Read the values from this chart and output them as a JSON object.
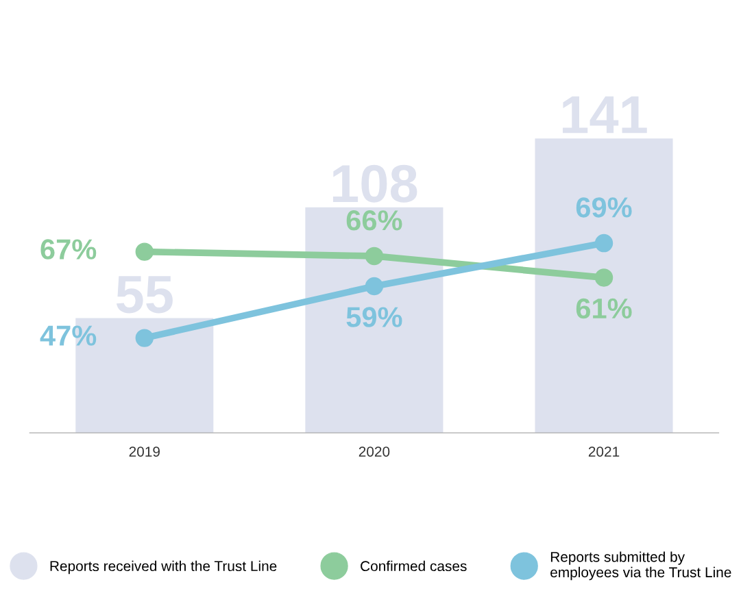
{
  "chart_data": {
    "type": "bar",
    "categories": [
      "2019",
      "2020",
      "2021"
    ],
    "series": [
      {
        "name": "Reports received with the Trust Line",
        "color": "#dde1ee",
        "values": [
          55,
          108,
          141
        ]
      },
      {
        "name": "Confirmed cases",
        "type": "line",
        "axis": "y2",
        "color": "#8dcc9c",
        "values": [
          67,
          66,
          61
        ],
        "value_labels": [
          "67%",
          "66%",
          "61%"
        ]
      },
      {
        "name": "Reports submitted by employees via the Trust Line",
        "type": "line",
        "axis": "y2",
        "color": "#7ec3dd",
        "values": [
          47,
          59,
          69
        ],
        "value_labels": [
          "47%",
          "59%",
          "69%"
        ]
      }
    ],
    "data_labels": true,
    "tick_labels": "x",
    "marker": "circle",
    "legend": "bottom",
    "grid": false
  }
}
